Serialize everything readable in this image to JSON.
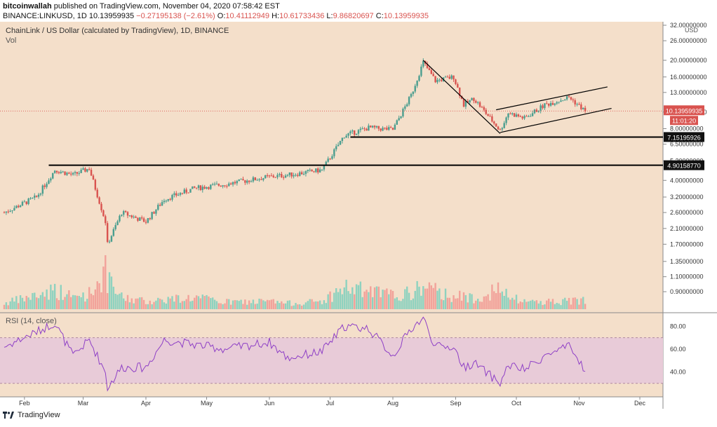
{
  "header": {
    "publisher": "bitcoinwallah",
    "published_text": "published on TradingView.com, November 04, 2020 07:58:42 EST",
    "symbol_line": "BINANCE:LINKUSD, 1D",
    "last_price": "10.13959935",
    "change": "−0.27195138 (−2.61%)",
    "o_label": "O:",
    "o_value": "10.41112949",
    "h_label": "H:",
    "h_value": "10.61733436",
    "l_label": "L:",
    "l_value": "9.86820697",
    "c_label": "C:",
    "c_value": "10.13959935"
  },
  "pane_title": "ChainLink / US Dollar (calculated by TradingView), 1D, BINANCE",
  "volume_label": "Vol",
  "rsi_label": "RSI (14, close)",
  "footer_brand": "TradingView",
  "colors": {
    "background": "#f4dfca",
    "up": "#4a9e8f",
    "down": "#d9534f",
    "volume_up": "#8ed2bf",
    "volume_down": "#f2a29a",
    "rsi_line": "#8e3fc6",
    "rsi_band": "#e8cbd8"
  },
  "chart_data": {
    "type": "candlestick",
    "title": "ChainLink / US Dollar (calculated by TradingView), 1D, BINANCE",
    "y_scale": "log",
    "y_unit": "USD",
    "price_ticks": [
      "32.00000000",
      "26.00000000",
      "20.00000000",
      "16.00000000",
      "13.00000000",
      "10.00000000",
      "8.00000000",
      "6.50000000",
      "5.20000000",
      "4.00000000",
      "3.20000000",
      "2.60000000",
      "2.10000000",
      "1.70000000",
      "1.35000000",
      "1.10000000",
      "0.90000000"
    ],
    "x_ticks": [
      "Feb",
      "Mar",
      "Apr",
      "May",
      "Jun",
      "Jul",
      "Aug",
      "Sep",
      "Oct",
      "Nov",
      "Dec"
    ],
    "x_range": [
      "2020-01-22",
      "2020-12-10"
    ],
    "price_path": [
      [
        "2020-01-22",
        2.6
      ],
      [
        "2020-02-07",
        3.2
      ],
      [
        "2020-02-16",
        4.6
      ],
      [
        "2020-02-25",
        4.3
      ],
      [
        "2020-03-04",
        4.7
      ],
      [
        "2020-03-12",
        2.3
      ],
      [
        "2020-03-13",
        1.7
      ],
      [
        "2020-03-20",
        2.6
      ],
      [
        "2020-04-01",
        2.3
      ],
      [
        "2020-04-10",
        3.1
      ],
      [
        "2020-04-25",
        3.6
      ],
      [
        "2020-05-10",
        3.8
      ],
      [
        "2020-06-01",
        4.2
      ],
      [
        "2020-06-10",
        4.3
      ],
      [
        "2020-06-27",
        4.6
      ],
      [
        "2020-07-08",
        7.3
      ],
      [
        "2020-07-20",
        8.1
      ],
      [
        "2020-08-01",
        7.9
      ],
      [
        "2020-08-10",
        12.5
      ],
      [
        "2020-08-16",
        19.5
      ],
      [
        "2020-08-22",
        15.2
      ],
      [
        "2020-08-31",
        16.0
      ],
      [
        "2020-09-05",
        11.0
      ],
      [
        "2020-09-10",
        12.0
      ],
      [
        "2020-09-23",
        7.8
      ],
      [
        "2020-09-27",
        9.9
      ],
      [
        "2020-10-05",
        9.2
      ],
      [
        "2020-10-15",
        11.0
      ],
      [
        "2020-10-27",
        12.2
      ],
      [
        "2020-11-04",
        10.14
      ]
    ],
    "horizontal_levels": [
      {
        "value": 7.15195926,
        "label": "7.15195926",
        "from": "2020-07-11"
      },
      {
        "value": 4.9015877,
        "label": "4.90158770",
        "from": "2020-02-13"
      }
    ],
    "trendlines": [
      {
        "from": [
          "2020-08-16",
          20.0
        ],
        "to": [
          "2020-09-23",
          7.5
        ]
      },
      {
        "from": [
          "2020-09-21",
          10.3
        ],
        "to": [
          "2020-11-15",
          14.0
        ]
      },
      {
        "from": [
          "2020-09-23",
          7.6
        ],
        "to": [
          "2020-11-17",
          10.5
        ]
      }
    ],
    "last_price_label": "10.13959935",
    "countdown_label": "11:01:20",
    "rsi": {
      "label": "RSI (14, close)",
      "ticks": [
        "80.00",
        "60.00",
        "40.00"
      ],
      "upper": 70,
      "lower": 30,
      "path": [
        [
          "2020-01-22",
          62
        ],
        [
          "2020-02-07",
          75
        ],
        [
          "2020-02-16",
          83
        ],
        [
          "2020-02-25",
          54
        ],
        [
          "2020-03-04",
          68
        ],
        [
          "2020-03-12",
          40
        ],
        [
          "2020-03-13",
          26
        ],
        [
          "2020-03-20",
          44
        ],
        [
          "2020-04-01",
          44
        ],
        [
          "2020-04-10",
          68
        ],
        [
          "2020-04-25",
          64
        ],
        [
          "2020-05-10",
          60
        ],
        [
          "2020-06-01",
          66
        ],
        [
          "2020-06-10",
          52
        ],
        [
          "2020-06-27",
          58
        ],
        [
          "2020-07-08",
          80
        ],
        [
          "2020-07-20",
          78
        ],
        [
          "2020-08-01",
          54
        ],
        [
          "2020-08-10",
          78
        ],
        [
          "2020-08-16",
          87
        ],
        [
          "2020-08-22",
          62
        ],
        [
          "2020-08-31",
          62
        ],
        [
          "2020-09-05",
          44
        ],
        [
          "2020-09-10",
          48
        ],
        [
          "2020-09-23",
          30
        ],
        [
          "2020-09-27",
          46
        ],
        [
          "2020-10-05",
          42
        ],
        [
          "2020-10-15",
          54
        ],
        [
          "2020-10-27",
          62
        ],
        [
          "2020-11-04",
          42
        ]
      ]
    },
    "volume_profile": [
      [
        "2020-01-22",
        0.15
      ],
      [
        "2020-02-07",
        0.35
      ],
      [
        "2020-02-16",
        0.5
      ],
      [
        "2020-02-25",
        0.3
      ],
      [
        "2020-03-04",
        0.4
      ],
      [
        "2020-03-12",
        0.95
      ],
      [
        "2020-03-13",
        0.7
      ],
      [
        "2020-03-20",
        0.3
      ],
      [
        "2020-04-01",
        0.2
      ],
      [
        "2020-04-10",
        0.25
      ],
      [
        "2020-04-25",
        0.3
      ],
      [
        "2020-05-10",
        0.18
      ],
      [
        "2020-06-01",
        0.2
      ],
      [
        "2020-06-10",
        0.15
      ],
      [
        "2020-06-27",
        0.2
      ],
      [
        "2020-07-08",
        0.55
      ],
      [
        "2020-07-20",
        0.45
      ],
      [
        "2020-08-01",
        0.35
      ],
      [
        "2020-08-10",
        0.4
      ],
      [
        "2020-08-16",
        0.6
      ],
      [
        "2020-08-22",
        0.45
      ],
      [
        "2020-08-31",
        0.35
      ],
      [
        "2020-09-05",
        0.3
      ],
      [
        "2020-09-10",
        0.3
      ],
      [
        "2020-09-23",
        0.5
      ],
      [
        "2020-09-27",
        0.3
      ],
      [
        "2020-10-05",
        0.2
      ],
      [
        "2020-10-15",
        0.2
      ],
      [
        "2020-10-27",
        0.2
      ],
      [
        "2020-11-04",
        0.25
      ]
    ]
  }
}
